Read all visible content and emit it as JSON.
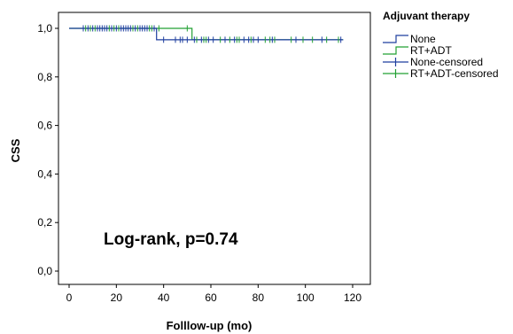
{
  "chart_data": {
    "type": "line",
    "subtype": "kaplan-meier",
    "title": "",
    "xlabel": "Folllow-up (mo)",
    "ylabel": "CSS",
    "xlim": [
      0,
      120
    ],
    "ylim": [
      0,
      1
    ],
    "x_ticks": [
      0,
      20,
      40,
      60,
      80,
      100,
      120
    ],
    "y_ticks": [
      0.0,
      0.2,
      0.4,
      0.6,
      0.8,
      1.0
    ],
    "x_tick_labels": [
      "0",
      "20",
      "40",
      "60",
      "80",
      "100",
      "120"
    ],
    "y_tick_labels": [
      "0,0",
      "0,2",
      "0,4",
      "0,6",
      "0,8",
      "1,0"
    ],
    "grid": false,
    "legend_title": "Adjuvant therapy",
    "legend_position": "outside-right",
    "annotation": "Log-rank, p=0.74",
    "series": [
      {
        "name": "None",
        "color": "#1f3f9f",
        "steps": [
          [
            0,
            1.0
          ],
          [
            37,
            1.0
          ],
          [
            37,
            0.953
          ],
          [
            116,
            0.953
          ]
        ],
        "censored_x": [
          6,
          8,
          10,
          12,
          13,
          14,
          15,
          16,
          18,
          20,
          22,
          23,
          24,
          25,
          26,
          28,
          30,
          31,
          32,
          33,
          36,
          40,
          45,
          47,
          48,
          50,
          53,
          56,
          59,
          61,
          66,
          70,
          74,
          76,
          78,
          80,
          86,
          96,
          107,
          115
        ]
      },
      {
        "name": "RT+ADT",
        "color": "#22a033",
        "steps": [
          [
            0,
            1.0
          ],
          [
            52,
            1.0
          ],
          [
            52,
            0.953
          ],
          [
            116,
            0.953
          ]
        ],
        "censored_x": [
          7,
          9,
          11,
          17,
          19,
          21,
          27,
          29,
          34,
          35,
          38,
          50,
          54,
          57,
          58,
          64,
          68,
          71,
          72,
          77,
          83,
          85,
          87,
          94,
          99,
          103,
          109,
          114
        ]
      }
    ],
    "legend_entries": [
      {
        "label": "None",
        "kind": "step",
        "color": "#1f3f9f"
      },
      {
        "label": "RT+ADT",
        "kind": "step",
        "color": "#22a033"
      },
      {
        "label": "None-censored",
        "kind": "censor",
        "color": "#1f3f9f"
      },
      {
        "label": "RT+ADT-censored",
        "kind": "censor",
        "color": "#22a033"
      }
    ]
  }
}
